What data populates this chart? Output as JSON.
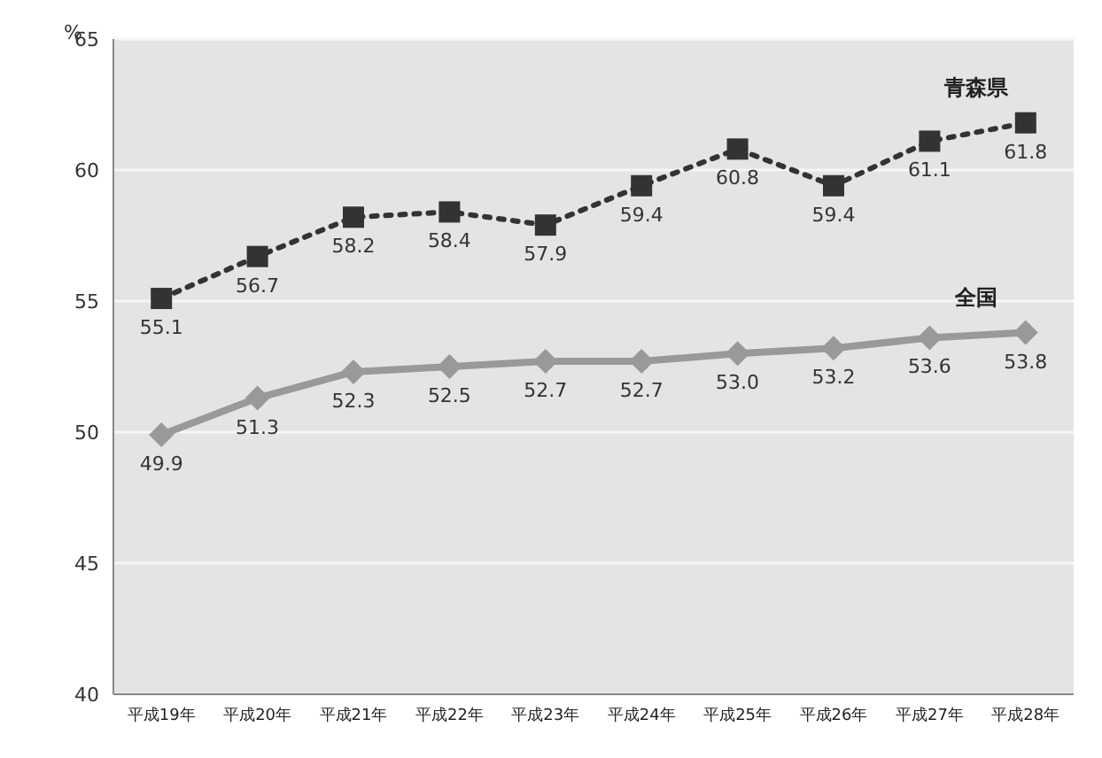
{
  "chart_data": {
    "type": "line",
    "ylabel": "%",
    "categories": [
      "平成19年",
      "平成20年",
      "平成21年",
      "平成22年",
      "平成23年",
      "平成24年",
      "平成25年",
      "平成26年",
      "平成27年",
      "平成28年"
    ],
    "series": [
      {
        "name": "青森県",
        "color": "#333333",
        "marker": "square",
        "line_style": "dotted",
        "values": [
          55.1,
          56.7,
          58.2,
          58.4,
          57.9,
          59.4,
          60.8,
          59.4,
          61.1,
          61.8
        ],
        "value_labels": [
          "55.1",
          "56.7",
          "58.2",
          "58.4",
          "57.9",
          "59.4",
          "60.8",
          "59.4",
          "61.1",
          "61.8"
        ]
      },
      {
        "name": "全国",
        "color": "#999999",
        "marker": "diamond",
        "line_style": "solid",
        "values": [
          49.9,
          51.3,
          52.3,
          52.5,
          52.7,
          52.7,
          53.0,
          53.2,
          53.6,
          53.8
        ],
        "value_labels": [
          "49.9",
          "51.3",
          "52.3",
          "52.5",
          "52.7",
          "52.7",
          "53.0",
          "53.2",
          "53.6",
          "53.8"
        ]
      }
    ],
    "ylim": [
      40,
      65
    ],
    "yticks": [
      40,
      45,
      50,
      55,
      60,
      65
    ],
    "grid": "y",
    "legend": false
  }
}
